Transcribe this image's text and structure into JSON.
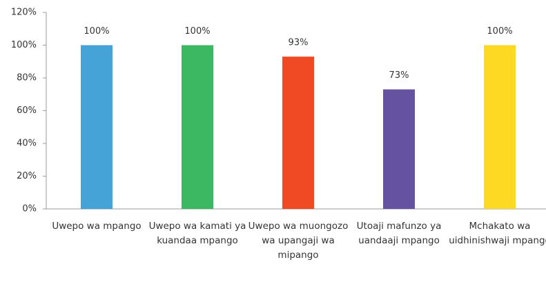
{
  "chart_data": {
    "type": "bar",
    "categories": [
      "Uwepo wa mpango",
      "Uwepo wa kamati ya kuandaa mpango",
      "Uwepo wa muongozo wa upangaji wa mipango",
      "Utoaji mafunzo ya uandaaji mpango",
      "Mchakato wa uidhinishwaji mpango"
    ],
    "values": [
      100,
      100,
      93,
      73,
      100
    ],
    "value_labels": [
      "100%",
      "100%",
      "93%",
      "73%",
      "100%"
    ],
    "colors": [
      "#45a3d8",
      "#3cb862",
      "#f04a24",
      "#6552a1",
      "#fdd923"
    ],
    "ylim": [
      0,
      120
    ],
    "yticks": [
      {
        "value": 0,
        "label": "0%"
      },
      {
        "value": 20,
        "label": "20%"
      },
      {
        "value": 40,
        "label": "40%"
      },
      {
        "value": 60,
        "label": "60%"
      },
      {
        "value": 80,
        "label": "80%"
      },
      {
        "value": 100,
        "label": "100%"
      },
      {
        "value": 120,
        "label": "120%"
      }
    ]
  }
}
